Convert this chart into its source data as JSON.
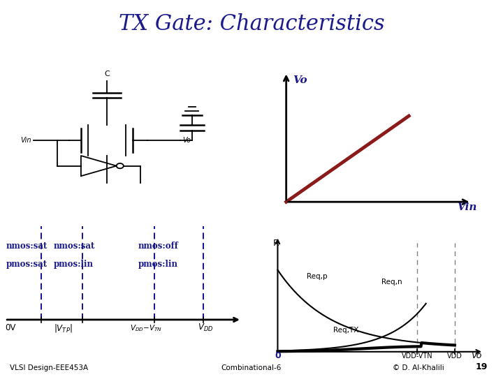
{
  "title": "TX Gate: Characteristics",
  "title_color": "#1a1a8c",
  "title_fontsize": 22,
  "bg_color": "#ffffff",
  "green_bar_color": "#228B22",
  "red_bar_color": "#cc0000",
  "footer_left": "VLSI Design-EEE453A",
  "footer_center": "Combinational-6",
  "footer_right": "© D. Al-Khalili",
  "footer_page": "19",
  "vo_vin_line_color": "#8b1a1a",
  "label_color": "#1a1a8c",
  "region_label_color": "#1a1a8c",
  "dashed_line_color": "#00008b",
  "curve_color": "#000000"
}
